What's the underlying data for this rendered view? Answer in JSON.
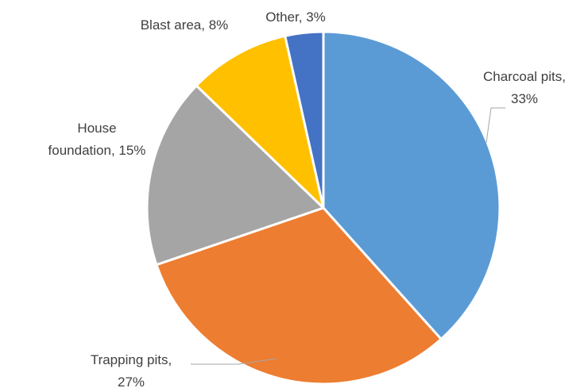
{
  "chart_data": {
    "type": "pie",
    "slices": [
      {
        "name": "Charcoal pits",
        "value": 33,
        "label_lines": [
          "Charcoal pits,",
          "33%"
        ],
        "color": "#5b9bd5"
      },
      {
        "name": "Trapping pits",
        "value": 27,
        "label_lines": [
          "Trapping pits,",
          "27%"
        ],
        "color": "#ed7d31"
      },
      {
        "name": "House foundation",
        "value": 15,
        "label_lines": [
          "House",
          "foundation, 15%"
        ],
        "color": "#a5a5a5"
      },
      {
        "name": "Blast area",
        "value": 8,
        "label_lines": [
          "Blast area, 8%"
        ],
        "color": "#ffc000"
      },
      {
        "name": "Other",
        "value": 3,
        "label_lines": [
          "Other, 3%"
        ],
        "color": "#4472c4"
      }
    ],
    "legend": "none"
  }
}
